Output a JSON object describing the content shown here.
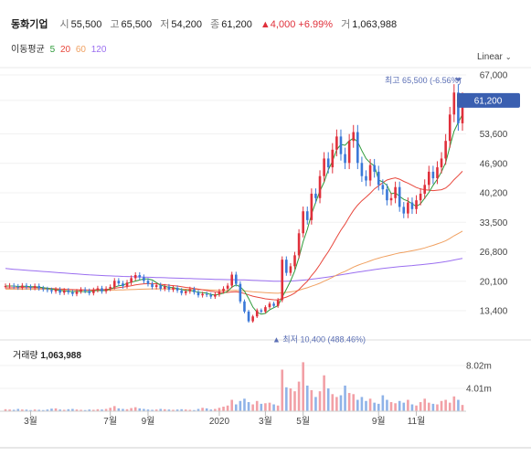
{
  "header": {
    "name": "동화기업",
    "items": [
      {
        "label": "시",
        "value": "55,500"
      },
      {
        "label": "고",
        "value": "65,500"
      },
      {
        "label": "저",
        "value": "54,200"
      },
      {
        "label": "종",
        "value": "61,200"
      }
    ],
    "change": "▲4,000",
    "change_pct": "+6.99%",
    "volume_label": "거",
    "volume_value": "1,063,988"
  },
  "ma_legend": {
    "label": "이동평균",
    "periods": [
      {
        "value": "5",
        "color": "#2e9b3a"
      },
      {
        "value": "20",
        "color": "#e8473c"
      },
      {
        "value": "60",
        "color": "#f0a060"
      },
      {
        "value": "120",
        "color": "#9b6ff0"
      }
    ]
  },
  "scale_button": {
    "label": "Linear"
  },
  "annotations": {
    "high": "최고 65,500 (-6.56%)",
    "low": "▲ 최저 10,400 (488.46%)",
    "current": "61,200"
  },
  "volume_panel": {
    "title": "거래량",
    "value": "1,063,988"
  },
  "colors": {
    "up": "#e0303b",
    "down": "#3a78d8",
    "ma5": "#2e9b3a",
    "ma20": "#e8473c",
    "ma60": "#f0a060",
    "ma120": "#9b6ff0",
    "current_bg": "#3a5fb0",
    "annotation": "#5b6fb5"
  },
  "chart_data": {
    "type": "candlestick",
    "price_ticks": [
      "67,000",
      "61,200",
      "53,600",
      "46,900",
      "40,200",
      "33,500",
      "26,800",
      "20,100",
      "13,400"
    ],
    "price_tick_values": [
      67000,
      61200,
      53600,
      46900,
      40200,
      33500,
      26800,
      20100,
      13400
    ],
    "volume_ticks": [
      "8.02m",
      "4.01m"
    ],
    "volume_tick_values": [
      8020000,
      4010000
    ],
    "x_ticks": [
      "3월",
      "7월",
      "9월",
      "2020",
      "3월",
      "5월",
      "9월",
      "11월"
    ],
    "high": 65500,
    "low": 10400,
    "last_close": 61200,
    "close": [
      19000,
      19100,
      18900,
      18700,
      19100,
      18800,
      18600,
      19000,
      18500,
      18300,
      18100,
      17800,
      18200,
      17500,
      18000,
      17600,
      17200,
      17800,
      18200,
      17900,
      17400,
      18100,
      18500,
      17800,
      18400,
      18800,
      20200,
      19600,
      19000,
      19800,
      20800,
      21500,
      21000,
      20200,
      19500,
      18800,
      19200,
      18400,
      18900,
      18200,
      18600,
      18000,
      17400,
      17800,
      18300,
      17600,
      16900,
      17200,
      17000,
      16600,
      17100,
      17800,
      18400,
      19100,
      21600,
      19500,
      15500,
      13200,
      11000,
      12100,
      13500,
      13200,
      14200,
      15000,
      14500,
      15800,
      25000,
      22000,
      23500,
      26000,
      31000,
      36000,
      34000,
      40000,
      39000,
      44000,
      48000,
      46000,
      50000,
      53000,
      49000,
      47000,
      52000,
      54000,
      47000,
      44000,
      43000,
      46500,
      45000,
      42000,
      41000,
      38500,
      39000,
      41500,
      37000,
      35500,
      38000,
      36500,
      38500,
      40000,
      42000,
      45000,
      43500,
      46000,
      48000,
      52000,
      58000,
      63000,
      56000,
      61200
    ],
    "volume": [
      0.35,
      0.3,
      0.25,
      0.4,
      0.3,
      0.28,
      0.2,
      0.3,
      0.25,
      0.2,
      0.3,
      0.45,
      0.5,
      0.3,
      0.25,
      0.35,
      0.4,
      0.3,
      0.25,
      0.2,
      0.3,
      0.25,
      0.35,
      0.3,
      0.4,
      0.6,
      0.9,
      0.5,
      0.4,
      0.35,
      0.55,
      0.7,
      0.5,
      0.4,
      0.3,
      0.25,
      0.3,
      0.4,
      0.35,
      0.3,
      0.25,
      0.3,
      0.35,
      0.3,
      0.25,
      0.2,
      0.4,
      0.6,
      0.5,
      0.3,
      0.4,
      0.6,
      0.8,
      1.0,
      2.0,
      1.2,
      1.8,
      2.2,
      1.6,
      1.2,
      1.8,
      1.3,
      1.4,
      1.5,
      1.2,
      1.0,
      7.3,
      4.2,
      4.0,
      3.5,
      5.2,
      8.6,
      4.5,
      3.7,
      2.5,
      3.5,
      6.3,
      4.0,
      3.0,
      2.5,
      2.8,
      4.5,
      3.2,
      3.0,
      2.0,
      2.5,
      1.8,
      2.2,
      1.5,
      1.3,
      2.8,
      2.0,
      1.6,
      1.4,
      1.8,
      1.5,
      2.0,
      1.2,
      1.0,
      1.6,
      2.2,
      1.5,
      1.3,
      1.2,
      1.8,
      2.0,
      1.5,
      2.6,
      2.0,
      1.1
    ],
    "ma5": [
      19000,
      19000,
      19000,
      18900,
      18960,
      18920,
      18840,
      18840,
      18760,
      18640,
      18500,
      18340,
      18180,
      17980,
      17920,
      17820,
      17700,
      17820,
      17760,
      17740,
      17700,
      17880,
      18020,
      17940,
      18040,
      18320,
      18740,
      19080,
      19200,
      19600,
      19880,
      20140,
      20380,
      20600,
      20600,
      20380,
      19800,
      19180,
      18960,
      18700,
      18640,
      18440,
      18220,
      18000,
      18020,
      17820,
      17600,
      17520,
      17400,
      17060,
      16960,
      17140,
      17380,
      17800,
      18760,
      19280,
      18820,
      17860,
      16160,
      14260,
      13060,
      12600,
      12800,
      13600,
      14080,
      14540,
      16500,
      18260,
      20160,
      22460,
      25500,
      29100,
      31900,
      35400,
      38000,
      40600,
      42600,
      45400,
      47400,
      50000,
      51200,
      51000,
      52000,
      52600,
      51800,
      49800,
      48000,
      47000,
      46300,
      43100,
      42700,
      41900,
      40000,
      40200,
      39400,
      38700,
      38300,
      37700,
      37100,
      37700,
      39000,
      40300,
      41900,
      43300,
      45000,
      47100,
      50700,
      54200,
      56200,
      58040
    ],
    "ma20": [
      18600,
      18600,
      18620,
      18620,
      18640,
      18640,
      18620,
      18620,
      18580,
      18540,
      18500,
      18440,
      18380,
      18320,
      18300,
      18250,
      18200,
      18150,
      18150,
      18120,
      18100,
      18150,
      18200,
      18200,
      18250,
      18350,
      18500,
      18650,
      18750,
      18900,
      19050,
      19250,
      19400,
      19500,
      19550,
      19550,
      19500,
      19400,
      19300,
      19200,
      19100,
      19000,
      18850,
      18700,
      18600,
      18450,
      18300,
      18150,
      18000,
      17850,
      17700,
      17600,
      17550,
      17550,
      17650,
      17700,
      17550,
      17300,
      17000,
      16700,
      16500,
      16300,
      16100,
      16000,
      15900,
      15850,
      16200,
      16500,
      16900,
      17400,
      18200,
      19200,
      20100,
      21400,
      22500,
      23900,
      25400,
      26800,
      28400,
      30100,
      31700,
      33100,
      34700,
      36200,
      37400,
      38400,
      39200,
      40100,
      41100,
      41800,
      42500,
      43100,
      43400,
      43600,
      43300,
      42800,
      42400,
      41900,
      41400,
      41100,
      40900,
      40800,
      40700,
      40800,
      40900,
      41300,
      42100,
      43200,
      44100,
      45100
    ],
    "ma60": [
      18300,
      18300,
      18300,
      18300,
      18300,
      18300,
      18300,
      18300,
      18300,
      18280,
      18260,
      18240,
      18220,
      18200,
      18180,
      18160,
      18140,
      18120,
      18100,
      18080,
      18060,
      18060,
      18060,
      18060,
      18060,
      18080,
      18100,
      18120,
      18140,
      18170,
      18200,
      18240,
      18280,
      18310,
      18340,
      18360,
      18370,
      18370,
      18370,
      18360,
      18350,
      18330,
      18310,
      18290,
      18270,
      18240,
      18210,
      18180,
      18150,
      18110,
      18070,
      18040,
      18010,
      18000,
      18010,
      18010,
      17960,
      17880,
      17790,
      17710,
      17640,
      17570,
      17510,
      17460,
      17410,
      17370,
      17480,
      17560,
      17670,
      17830,
      18060,
      18360,
      18620,
      18960,
      19280,
      19660,
      20110,
      20520,
      21000,
      21520,
      21950,
      22350,
      22820,
      23320,
      23700,
      24050,
      24370,
      24730,
      25070,
      25350,
      25620,
      25850,
      26080,
      26330,
      26520,
      26680,
      26870,
      27030,
      27220,
      27430,
      27680,
      27980,
      28260,
      28580,
      28920,
      29320,
      29830,
      30430,
      30940,
      31500
    ],
    "ma120": [
      23000,
      22900,
      22820,
      22740,
      22660,
      22590,
      22520,
      22450,
      22380,
      22310,
      22240,
      22170,
      22100,
      22030,
      21960,
      21890,
      21820,
      21750,
      21680,
      21610,
      21550,
      21500,
      21450,
      21400,
      21350,
      21310,
      21270,
      21230,
      21190,
      21160,
      21130,
      21100,
      21070,
      21040,
      21010,
      20980,
      20950,
      20920,
      20890,
      20860,
      20830,
      20800,
      20770,
      20740,
      20710,
      20680,
      20650,
      20620,
      20590,
      20560,
      20530,
      20510,
      20490,
      20470,
      20460,
      20450,
      20430,
      20400,
      20360,
      20320,
      20280,
      20240,
      20200,
      20160,
      20120,
      20080,
      20100,
      20120,
      20160,
      20210,
      20280,
      20370,
      20450,
      20560,
      20670,
      20790,
      20930,
      21070,
      21220,
      21390,
      21550,
      21700,
      21860,
      22030,
      22180,
      22320,
      22460,
      22610,
      22750,
      22880,
      23000,
      23110,
      23220,
      23330,
      23420,
      23500,
      23590,
      23670,
      23760,
      23850,
      23950,
      24060,
      24170,
      24290,
      24420,
      24560,
      24730,
      24930,
      25110,
      25300
    ]
  }
}
